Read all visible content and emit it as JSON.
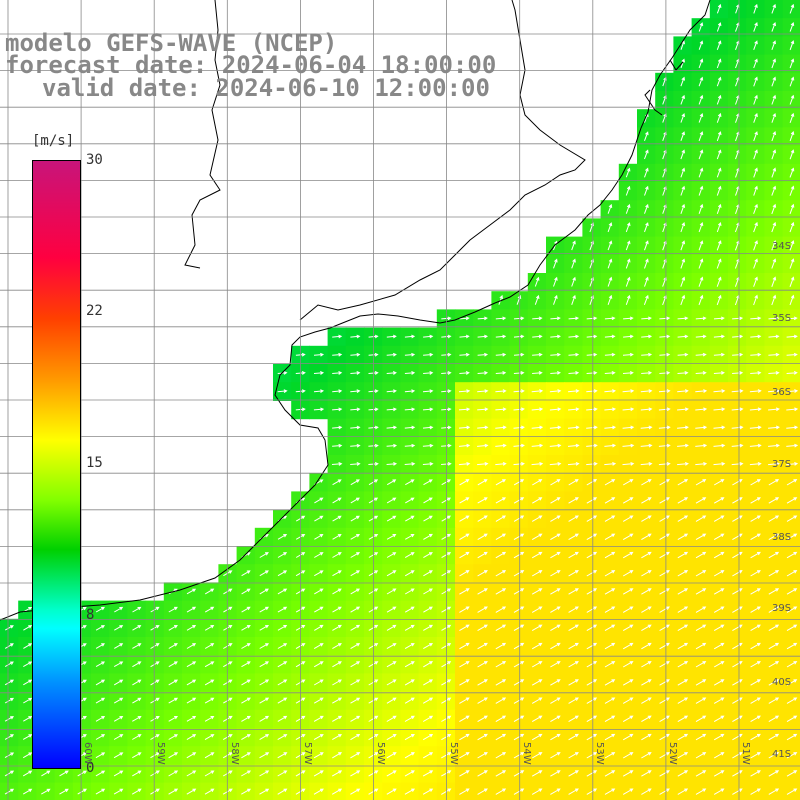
{
  "header": {
    "title": "modelo GEFS-WAVE (NCEP)",
    "forecast_date": "forecast date: 2024-06-04 18:00:00",
    "valid_date": "valid date: 2024-06-10 12:00:00"
  },
  "colorbar": {
    "unit": "[m/s]",
    "min": 0,
    "max": 30,
    "ticks": [
      "30",
      "22",
      "15",
      "8",
      "0"
    ],
    "tick_values": [
      30,
      22,
      15,
      8,
      0
    ],
    "colors": [
      "#0000ff",
      "#0090ff",
      "#00ffff",
      "#00d000",
      "#80ff00",
      "#ffff00",
      "#ff9900",
      "#ff4000",
      "#ff0040",
      "#c8147a"
    ]
  },
  "map": {
    "lat_labels": [
      "34S",
      "35S",
      "36S",
      "37S",
      "38S",
      "39S",
      "40S",
      "41S"
    ],
    "lon_labels": [
      "60W",
      "59W",
      "58W",
      "57W",
      "56W",
      "55W",
      "54W",
      "53W",
      "52W",
      "51W"
    ],
    "wind_field_direction": "northeast",
    "strongest_winds_location": "southeast",
    "colors": {
      "land": "#ffffff",
      "coastline": "#000000",
      "grid": "#888888",
      "arrows": "#ffffff"
    }
  }
}
